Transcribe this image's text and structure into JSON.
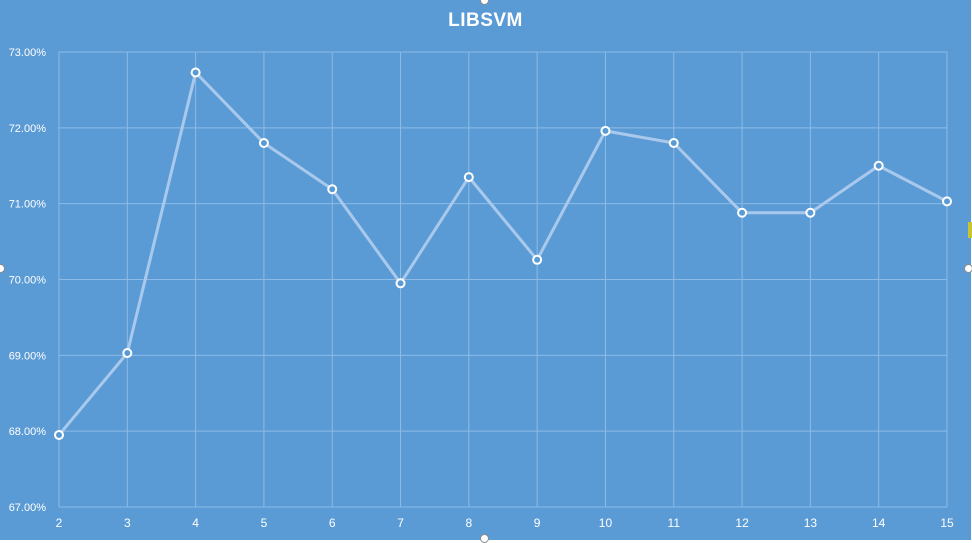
{
  "chart_data": {
    "type": "line",
    "title": "LIBSVM",
    "xlabel": "",
    "ylabel": "",
    "x": [
      2,
      3,
      4,
      5,
      6,
      7,
      8,
      9,
      10,
      11,
      12,
      13,
      14,
      15
    ],
    "y_tick_labels": [
      "67.00%",
      "68.00%",
      "69.00%",
      "70.00%",
      "71.00%",
      "72.00%",
      "73.00%"
    ],
    "ylim": [
      0.67,
      0.73
    ],
    "grid": true,
    "legend": "none",
    "series": [
      {
        "values": [
          0.6795,
          0.6903,
          0.7273,
          0.718,
          0.7119,
          0.6995,
          0.7135,
          0.7026,
          0.7196,
          0.718,
          0.7088,
          0.7088,
          0.715,
          0.7103
        ]
      }
    ],
    "colors": {
      "background": "#5b9bd5",
      "line": "#a9c9ec",
      "marker_fill": "#5b9bd5",
      "marker_stroke": "#ffffff",
      "grid": "#8dbbe6",
      "text": "#ffffff"
    }
  }
}
